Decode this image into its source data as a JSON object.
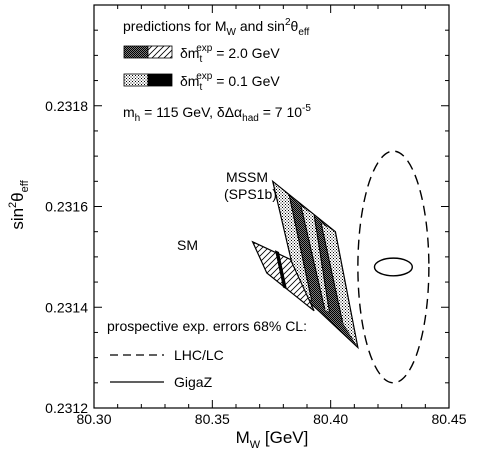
{
  "chart_data": {
    "type": "scatter",
    "xlabel": {
      "main": "M",
      "sub": "W",
      "rest": " [GeV]"
    },
    "ylabel": {
      "main": "sin",
      "sup": "2",
      "theta": "θ",
      "sub": "eff"
    },
    "xlim": [
      80.3,
      80.45
    ],
    "ylim": [
      0.2312,
      0.232
    ],
    "x_ticks": [
      "80.30",
      "80.35",
      "80.40",
      "80.45"
    ],
    "y_ticks": [
      "0.2312",
      "0.2314",
      "0.2316",
      "0.2318"
    ],
    "grid": false,
    "legend_top": {
      "title": {
        "t1": "predictions for M",
        "t1sub": "W",
        "t2": " and sin",
        "t2sup": "2",
        "t3": "θ",
        "t3sub": "eff"
      },
      "entry1": {
        "d": "δm",
        "sub": "t",
        "sup": "exp",
        "rest": " = 2.0 GeV"
      },
      "entry2": {
        "d": "δm",
        "sub": "t",
        "sup": "exp",
        "rest": " = 0.1 GeV"
      },
      "params": {
        "p1": "m",
        "p1sub": "h",
        "p2": " = 115 GeV, δΔα",
        "p2sub": "had",
        "p3": " = 7 10",
        "p3sup": "-5"
      }
    },
    "labels": {
      "mssm_line1": "MSSM",
      "mssm_line2": "(SPS1b)",
      "sm": "SM"
    },
    "legend_bottom": {
      "title": "prospective exp. errors 68% CL:",
      "entry1": "LHC/LC",
      "entry2": "GigaZ"
    },
    "series": [
      {
        "name": "MSSM",
        "kind": "band",
        "polygon": [
          [
            80.3755,
            0.23165
          ],
          [
            80.402,
            0.23155
          ],
          [
            80.4115,
            0.23132
          ],
          [
            80.3865,
            0.23143
          ]
        ],
        "light_bands": [
          [
            [
              80.3755,
              0.23165
            ],
            [
              80.3825,
              0.231622
            ],
            [
              80.392,
              0.231413
            ],
            [
              80.3865,
              0.23143
            ]
          ],
          [
            [
              80.3875,
              0.2316
            ],
            [
              80.393,
              0.231584
            ],
            [
              80.3995,
              0.23139
            ],
            [
              80.3975,
              0.231396
            ]
          ],
          [
            [
              80.396,
              0.231566
            ],
            [
              80.402,
              0.23155
            ],
            [
              80.4115,
              0.23132
            ],
            [
              80.405,
              0.231371
            ]
          ]
        ],
        "divider_lines": [
          [
            80.3825,
            0.231622,
            80.392,
            0.231413
          ],
          [
            80.3875,
            0.2316,
            80.3975,
            0.231396
          ],
          [
            80.393,
            0.231584,
            80.3995,
            0.23139
          ],
          [
            80.396,
            0.231566,
            80.405,
            0.231371
          ]
        ]
      },
      {
        "name": "SM",
        "kind": "band",
        "polygon": [
          [
            80.367,
            0.23153
          ],
          [
            80.383,
            0.231495
          ],
          [
            80.393,
            0.231393
          ],
          [
            80.373,
            0.231468
          ]
        ],
        "solid_band": [
          [
            80.3767,
            0.231512
          ],
          [
            80.378,
            0.231509
          ],
          [
            80.3813,
            0.231437
          ],
          [
            80.38,
            0.23144
          ]
        ]
      },
      {
        "name": "LHC/LC",
        "kind": "ellipse",
        "style": "dashed",
        "center": [
          80.4265,
          0.23148
        ],
        "rx": 0.015,
        "ry": 0.00023
      },
      {
        "name": "GigaZ",
        "kind": "ellipse",
        "style": "solid",
        "center": [
          80.4265,
          0.23148
        ],
        "rx": 0.008,
        "ry": 1.75e-05
      }
    ]
  }
}
